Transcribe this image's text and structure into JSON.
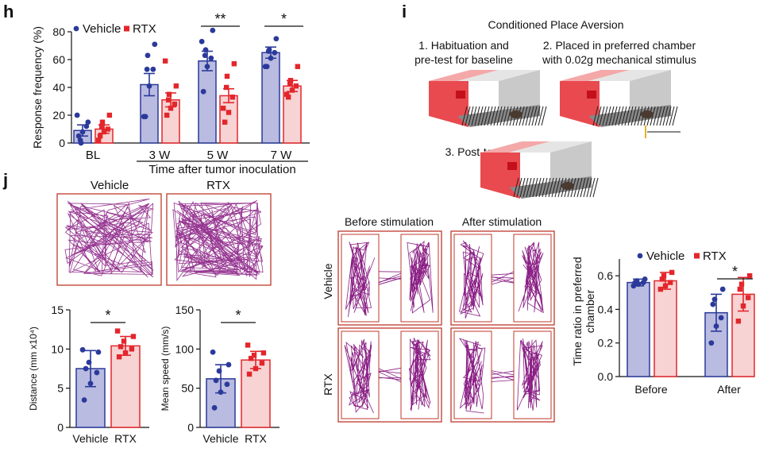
{
  "colors": {
    "vehicle": "#2b3a9a",
    "vehicle_fill": "#b9bbe0",
    "rtx": "#e3262c",
    "rtx_fill": "#f7d3d3",
    "track": "#8a1e84",
    "box": "#c0392b",
    "grey": "#666666"
  },
  "panel_h": {
    "letter": "h",
    "legend": [
      "Vehicle",
      "RTX"
    ],
    "ylabel": "Response frequency (%)",
    "xlabel": "Time after tumor inoculation",
    "sig": [
      "**",
      "*"
    ]
  },
  "panel_i": {
    "letter": "i",
    "title": "Conditioned Place Aversion",
    "step1": [
      "1. Habituation and",
      "pre-test for baseline"
    ],
    "step2": [
      "2. Placed in preferred chamber",
      "with 0.02g mechanical stimulus"
    ],
    "step3": "3. Post-test",
    "before_label": "Before stimulation",
    "after_label": "After stimulation",
    "row_labels": [
      "Vehicle",
      "RTX"
    ]
  },
  "panel_j": {
    "letter": "j",
    "track_labels": [
      "Vehicle",
      "RTX"
    ]
  },
  "chart_data": [
    {
      "type": "bar",
      "id": "h",
      "categories": [
        "BL",
        "3 W",
        "5 W",
        "7 W"
      ],
      "ylabel": "Response frequency (%)",
      "xlabel": "Time after tumor inoculation",
      "ylim": [
        0,
        80
      ],
      "yticks": [
        0,
        20,
        40,
        60,
        80
      ],
      "series": [
        {
          "name": "Vehicle",
          "values": [
            9,
            42,
            59,
            65
          ],
          "errors": [
            4,
            8,
            7,
            4
          ],
          "points": [
            [
              5,
              8,
              12,
              2,
              0,
              15,
              20
            ],
            [
              19,
              41,
              53,
              53,
              63,
              71,
              19
            ],
            [
              37,
              55,
              61,
              63,
              67,
              81,
              73
            ],
            [
              55,
              61,
              65,
              66,
              67,
              75,
              55
            ]
          ]
        },
        {
          "name": "RTX",
          "values": [
            10,
            31,
            34,
            41
          ],
          "errors": [
            3,
            5,
            5,
            4
          ],
          "points": [
            [
              5,
              8,
              10,
              12,
              15,
              20,
              2
            ],
            [
              20,
              25,
              28,
              31,
              35,
              41,
              59
            ],
            [
              15,
              22,
              33,
              40,
              48,
              57,
              25
            ],
            [
              33,
              38,
              41,
              43,
              45,
              55,
              35
            ]
          ]
        }
      ],
      "significance": [
        {
          "category": "5 W",
          "label": "**"
        },
        {
          "category": "7 W",
          "label": "*"
        }
      ]
    },
    {
      "type": "bar",
      "id": "j-distance",
      "categories": [
        "Vehicle",
        "RTX"
      ],
      "ylabel": "Distance (mm x10⁴)",
      "ylim": [
        0,
        15
      ],
      "yticks": [
        0,
        5,
        10,
        15
      ],
      "values": [
        7.5,
        10.4
      ],
      "errors": [
        2.3,
        1.2
      ],
      "points": [
        [
          3.5,
          5.6,
          7.0,
          7.5,
          8.3,
          9.6,
          9.9
        ],
        [
          9.0,
          9.5,
          10.0,
          10.3,
          11.0,
          11.6,
          12.3
        ]
      ],
      "significance": [
        {
          "label": "*"
        }
      ]
    },
    {
      "type": "bar",
      "id": "j-speed",
      "categories": [
        "Vehicle",
        "RTX"
      ],
      "ylabel": "Mean speed (mm/s)",
      "ylim": [
        0,
        150
      ],
      "yticks": [
        0,
        50,
        100,
        150
      ],
      "values": [
        62,
        86
      ],
      "errors": [
        18,
        11
      ],
      "points": [
        [
          25,
          45,
          55,
          60,
          72,
          80,
          96
        ],
        [
          68,
          75,
          82,
          88,
          92,
          95,
          105
        ]
      ],
      "significance": [
        {
          "label": "*"
        }
      ]
    },
    {
      "type": "bar",
      "id": "i-cpa",
      "categories": [
        "Before",
        "After"
      ],
      "legend": [
        "Vehicle",
        "RTX"
      ],
      "ylabel": "Time ratio in preferred chamber",
      "ylim": [
        0,
        0.7
      ],
      "yticks": [
        0.0,
        0.2,
        0.4,
        0.6
      ],
      "series": [
        {
          "name": "Vehicle",
          "values": [
            0.56,
            0.38
          ],
          "errors": [
            0.02,
            0.11
          ],
          "points": [
            [
              0.54,
              0.55,
              0.56,
              0.56,
              0.57,
              0.58
            ],
            [
              0.2,
              0.3,
              0.35,
              0.43,
              0.46,
              0.52
            ]
          ]
        },
        {
          "name": "RTX",
          "values": [
            0.57,
            0.49
          ],
          "errors": [
            0.05,
            0.1
          ],
          "points": [
            [
              0.52,
              0.54,
              0.56,
              0.58,
              0.6,
              0.62
            ],
            [
              0.33,
              0.42,
              0.47,
              0.52,
              0.55,
              0.6
            ]
          ]
        }
      ],
      "significance": [
        {
          "category": "After",
          "label": "*"
        }
      ]
    }
  ]
}
